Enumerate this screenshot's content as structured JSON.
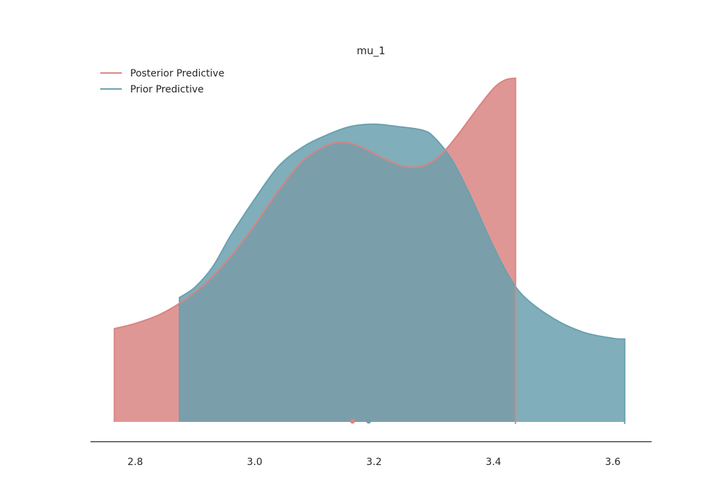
{
  "chart_data": {
    "type": "area",
    "title": "mu_1",
    "xlabel": "",
    "ylabel": "",
    "xlim": [
      2.725,
      3.665
    ],
    "ylim": [
      0,
      1.0
    ],
    "xticks": [
      2.8,
      3.0,
      3.2,
      3.4,
      3.6
    ],
    "xtick_labels": [
      "2.8",
      "3.0",
      "3.2",
      "3.4",
      "3.6"
    ],
    "grid": false,
    "legend_position": "top-left",
    "series": [
      {
        "name": "Posterior Predictive",
        "color": "#d98583",
        "fill_opacity": 0.85,
        "points": [
          [
            2.765,
            0.27
          ],
          [
            2.8,
            0.285
          ],
          [
            2.84,
            0.31
          ],
          [
            2.88,
            0.35
          ],
          [
            2.92,
            0.405
          ],
          [
            2.96,
            0.48
          ],
          [
            3.0,
            0.57
          ],
          [
            3.04,
            0.67
          ],
          [
            3.08,
            0.755
          ],
          [
            3.12,
            0.8
          ],
          [
            3.15,
            0.81
          ],
          [
            3.18,
            0.795
          ],
          [
            3.22,
            0.76
          ],
          [
            3.25,
            0.74
          ],
          [
            3.28,
            0.74
          ],
          [
            3.31,
            0.77
          ],
          [
            3.34,
            0.83
          ],
          [
            3.37,
            0.9
          ],
          [
            3.4,
            0.965
          ],
          [
            3.42,
            0.99
          ],
          [
            3.437,
            0.995
          ]
        ],
        "mean": 3.164
      },
      {
        "name": "Prior Predictive",
        "color": "#6aa0ae",
        "fill_opacity": 0.85,
        "points": [
          [
            2.874,
            0.36
          ],
          [
            2.9,
            0.39
          ],
          [
            2.93,
            0.45
          ],
          [
            2.96,
            0.54
          ],
          [
            3.0,
            0.645
          ],
          [
            3.04,
            0.74
          ],
          [
            3.08,
            0.795
          ],
          [
            3.12,
            0.83
          ],
          [
            3.16,
            0.855
          ],
          [
            3.2,
            0.862
          ],
          [
            3.24,
            0.855
          ],
          [
            3.28,
            0.845
          ],
          [
            3.3,
            0.825
          ],
          [
            3.33,
            0.76
          ],
          [
            3.36,
            0.66
          ],
          [
            3.39,
            0.545
          ],
          [
            3.42,
            0.44
          ],
          [
            3.45,
            0.365
          ],
          [
            3.5,
            0.3
          ],
          [
            3.55,
            0.26
          ],
          [
            3.6,
            0.242
          ],
          [
            3.62,
            0.24
          ]
        ],
        "mean": 3.191
      }
    ]
  }
}
